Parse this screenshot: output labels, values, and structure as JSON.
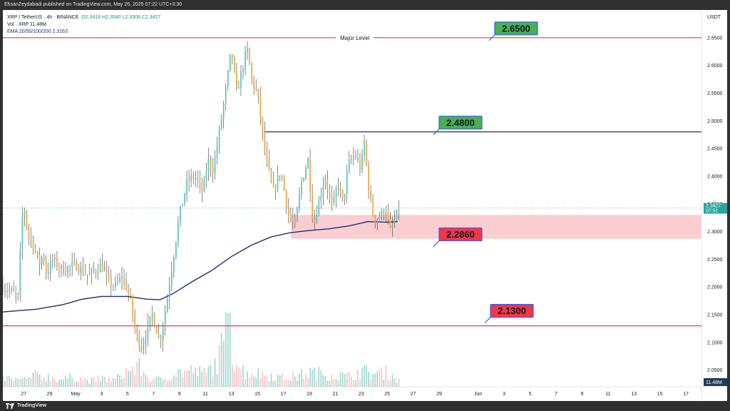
{
  "header": {
    "published": "EhsanZeydabadi published on TradingView.com, May 26, 2025 07:22 UTC+3:30"
  },
  "footer": {
    "brand": "TradingView"
  },
  "legend": {
    "symbol": "XRP / TetherUS · 4h · BINANCE",
    "ohlc": "O2.3416  H2.3540  L2.3308  C2.3427",
    "volume": "Vol · XRP  11.48M",
    "ema": "EMA 20/50/100/200  2.3163"
  },
  "chart_data": {
    "type": "candlestick",
    "title": "",
    "currency": "USDT",
    "ylim": [
      2.02,
      2.7
    ],
    "y_ticks": [
      "2.6500",
      "2.6000",
      "2.5500",
      "2.5000",
      "2.4500",
      "2.4000",
      "2.3500",
      "2.3000",
      "2.2500",
      "2.2000",
      "2.1500",
      "2.1000",
      "2.0500"
    ],
    "x_ticks": [
      "27",
      "29",
      "May",
      "3",
      "5",
      "7",
      "9",
      "11",
      "13",
      "15",
      "17",
      "19",
      "21",
      "23",
      "25",
      "27",
      "29",
      "Jun",
      "3",
      "5",
      "7",
      "9",
      "11",
      "13",
      "15",
      "17"
    ],
    "x_tick_days": [
      -3,
      -1,
      1,
      3,
      5,
      7,
      9,
      11,
      13,
      15,
      17,
      19,
      21,
      23,
      25,
      27,
      29,
      32,
      34,
      36,
      38,
      40,
      42,
      44,
      46,
      48
    ],
    "x_range_days": [
      -4.6,
      49.2
    ],
    "current_price": "2.3427",
    "countdown": "07:51",
    "volume_label": "11.48M",
    "levels": [
      {
        "price": 2.65,
        "label": "2.6500",
        "color": "#f23645",
        "style": "horizontal",
        "caption": "Major Level",
        "callout_color": "#4caf50"
      },
      {
        "price": 2.48,
        "label": "2.4800",
        "color": "#131722",
        "style": "horizontal",
        "caption": "",
        "callout_color": "#4caf50"
      },
      {
        "price": 2.286,
        "label": "2.2860",
        "color": "#f23645",
        "style": "zone",
        "caption": "",
        "callout_color": "#f23645"
      },
      {
        "price": 2.13,
        "label": "2.1300",
        "color": "#f23645",
        "style": "horizontal",
        "caption": "",
        "callout_color": "#f23645"
      }
    ],
    "zone": {
      "top": 2.33,
      "bottom": 2.287,
      "start_day": 17.6
    },
    "ema200": [
      [
        -4.6,
        2.155
      ],
      [
        -2,
        2.16
      ],
      [
        0,
        2.168
      ],
      [
        1.5,
        2.178
      ],
      [
        3,
        2.183
      ],
      [
        5,
        2.183
      ],
      [
        6.5,
        2.178
      ],
      [
        7.5,
        2.177
      ],
      [
        8.5,
        2.188
      ],
      [
        10,
        2.21
      ],
      [
        11.5,
        2.23
      ],
      [
        13,
        2.255
      ],
      [
        14.5,
        2.275
      ],
      [
        16,
        2.29
      ],
      [
        17.5,
        2.298
      ],
      [
        19,
        2.302
      ],
      [
        20.5,
        2.305
      ],
      [
        22,
        2.31
      ],
      [
        23.5,
        2.318
      ],
      [
        25,
        2.317
      ],
      [
        25.8,
        2.318
      ]
    ],
    "anchors": [
      [
        -4.6,
        2.2
      ],
      [
        -3.8,
        2.19
      ],
      [
        -3.4,
        2.18
      ],
      [
        -3.2,
        2.3
      ],
      [
        -3.0,
        2.35
      ],
      [
        -2.7,
        2.3
      ],
      [
        -2.3,
        2.28
      ],
      [
        -1.8,
        2.24
      ],
      [
        -1.5,
        2.26
      ],
      [
        -1.2,
        2.22
      ],
      [
        -0.8,
        2.25
      ],
      [
        0,
        2.23
      ],
      [
        1,
        2.24
      ],
      [
        2,
        2.22
      ],
      [
        3,
        2.24
      ],
      [
        3.5,
        2.21
      ],
      [
        4,
        2.2
      ],
      [
        4.6,
        2.22
      ],
      [
        5.2,
        2.18
      ],
      [
        5.6,
        2.12
      ],
      [
        6.1,
        2.09
      ],
      [
        6.6,
        2.13
      ],
      [
        6.9,
        2.15
      ],
      [
        7.5,
        2.1
      ],
      [
        8.0,
        2.17
      ],
      [
        8.5,
        2.25
      ],
      [
        9.0,
        2.33
      ],
      [
        9.6,
        2.39
      ],
      [
        10.2,
        2.4
      ],
      [
        10.8,
        2.37
      ],
      [
        11.2,
        2.43
      ],
      [
        11.6,
        2.41
      ],
      [
        12.0,
        2.47
      ],
      [
        12.6,
        2.56
      ],
      [
        13.0,
        2.63
      ],
      [
        13.4,
        2.55
      ],
      [
        13.8,
        2.59
      ],
      [
        14.2,
        2.63
      ],
      [
        14.6,
        2.57
      ],
      [
        15.0,
        2.55
      ],
      [
        15.6,
        2.44
      ],
      [
        16.2,
        2.37
      ],
      [
        16.8,
        2.41
      ],
      [
        17.4,
        2.33
      ],
      [
        17.9,
        2.31
      ],
      [
        18.4,
        2.39
      ],
      [
        18.9,
        2.43
      ],
      [
        19.3,
        2.31
      ],
      [
        19.7,
        2.35
      ],
      [
        20.2,
        2.4
      ],
      [
        20.8,
        2.34
      ],
      [
        21.2,
        2.39
      ],
      [
        21.6,
        2.35
      ],
      [
        22.0,
        2.42
      ],
      [
        22.5,
        2.44
      ],
      [
        23.0,
        2.41
      ],
      [
        23.2,
        2.47
      ],
      [
        23.6,
        2.37
      ],
      [
        24.0,
        2.32
      ],
      [
        24.5,
        2.33
      ],
      [
        24.9,
        2.34
      ],
      [
        25.2,
        2.3
      ],
      [
        25.6,
        2.32
      ],
      [
        25.9,
        2.343
      ]
    ],
    "volumes": [
      [
        -4.6,
        12
      ],
      [
        -3,
        9
      ],
      [
        -2,
        16
      ],
      [
        0,
        10
      ],
      [
        1,
        14
      ],
      [
        2,
        8
      ],
      [
        3,
        11
      ],
      [
        4,
        9
      ],
      [
        5,
        22
      ],
      [
        6,
        26
      ],
      [
        6.5,
        14
      ],
      [
        7,
        9
      ],
      [
        8,
        12
      ],
      [
        8.5,
        18
      ],
      [
        9,
        20
      ],
      [
        10,
        22
      ],
      [
        11,
        18
      ],
      [
        12,
        35
      ],
      [
        12.8,
        86
      ],
      [
        13.2,
        38
      ],
      [
        14,
        20
      ],
      [
        15,
        18
      ],
      [
        16,
        16
      ],
      [
        17,
        12
      ],
      [
        18,
        14
      ],
      [
        19,
        20
      ],
      [
        20,
        18
      ],
      [
        21,
        16
      ],
      [
        22,
        14
      ],
      [
        23,
        22
      ],
      [
        24,
        18
      ],
      [
        25,
        20
      ],
      [
        25.9,
        8
      ]
    ]
  }
}
